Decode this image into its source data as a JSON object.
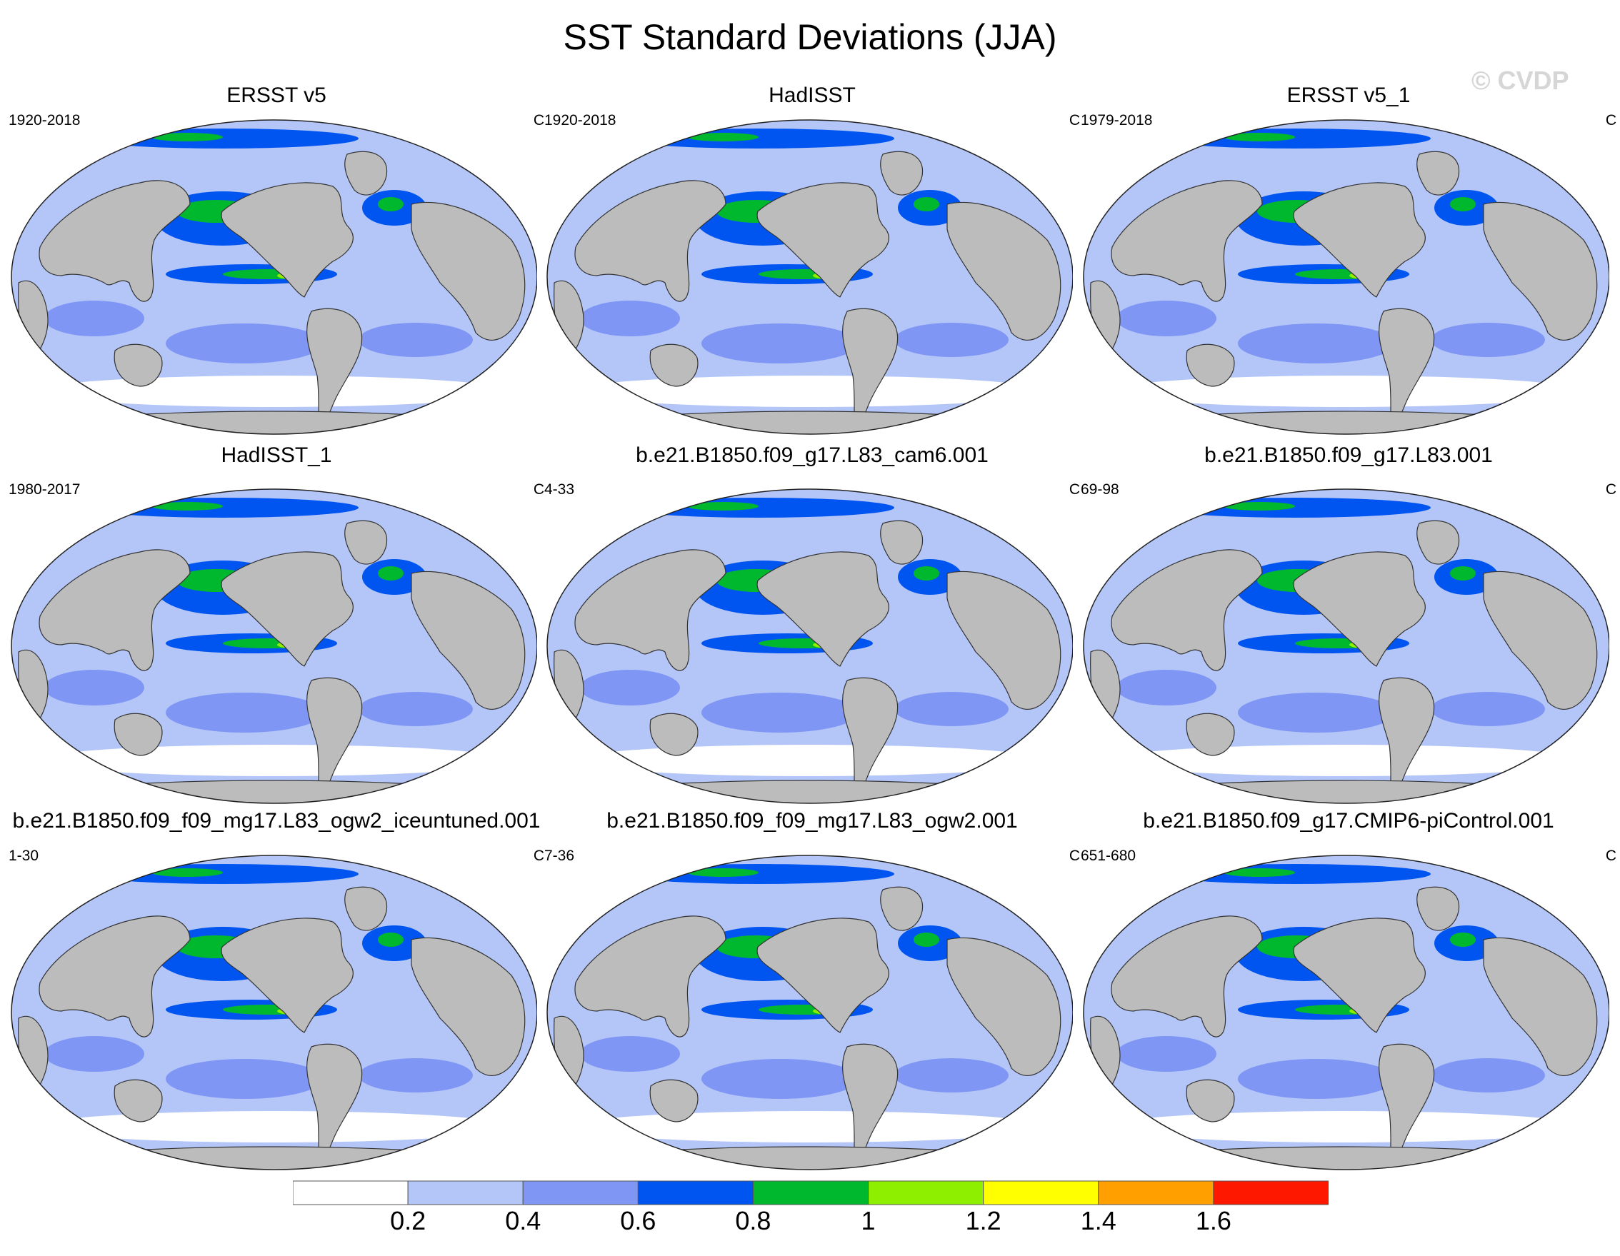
{
  "title": "SST Standard Deviations (JJA)",
  "watermark": "© CVDP",
  "panels": [
    {
      "title": "ERSST v5",
      "period": "1920-2018",
      "units": "C"
    },
    {
      "title": "HadISST",
      "period": "1920-2018",
      "units": "C"
    },
    {
      "title": "ERSST v5_1",
      "period": "1979-2018",
      "units": "C"
    },
    {
      "title": "HadISST_1",
      "period": "1980-2017",
      "units": "C"
    },
    {
      "title": "b.e21.B1850.f09_g17.L83_cam6.001",
      "period": "4-33",
      "units": "C"
    },
    {
      "title": "b.e21.B1850.f09_g17.L83.001",
      "period": "69-98",
      "units": "C"
    },
    {
      "title": "b.e21.B1850.f09_f09_mg17.L83_ogw2_iceuntuned.001",
      "period": "1-30",
      "units": "C"
    },
    {
      "title": "b.e21.B1850.f09_f09_mg17.L83_ogw2.001",
      "period": "7-36",
      "units": "C"
    },
    {
      "title": "b.e21.B1850.f09_g17.CMIP6-piControl.001",
      "period": "651-680",
      "units": "C"
    }
  ],
  "colorbar": {
    "labels": [
      "0.2",
      "0.4",
      "0.6",
      "0.8",
      "1",
      "1.2",
      "1.4",
      "1.6"
    ],
    "colors": [
      "#ffffff",
      "#b4c6f8",
      "#8096f4",
      "#0055f0",
      "#00b82e",
      "#8ef000",
      "#ffff00",
      "#ffa000",
      "#ff1800"
    ]
  },
  "colors": {
    "land": "#bcbcbc",
    "ocean_base": "#b4c6f8"
  }
}
